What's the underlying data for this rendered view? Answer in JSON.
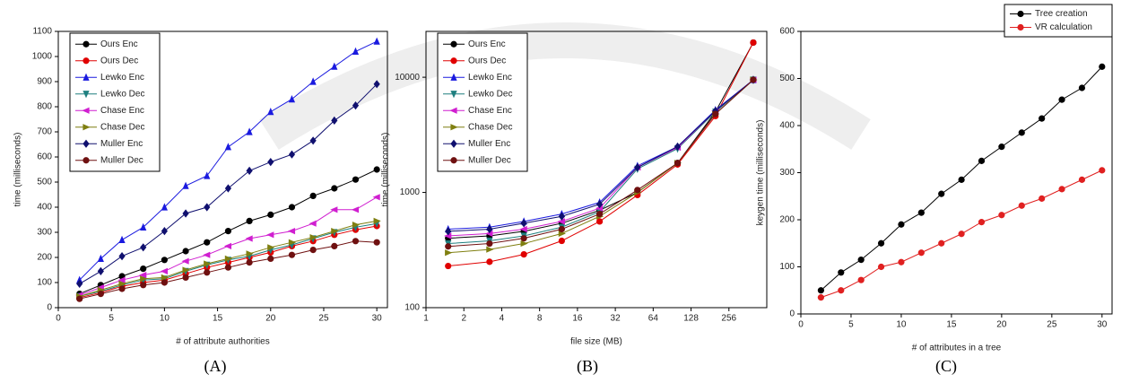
{
  "chart_data": [
    {
      "type": "line",
      "caption": "(A)",
      "x_label": "# of attribute authorities",
      "y_label": "time (milliseconds)",
      "x": [
        2,
        4,
        6,
        8,
        10,
        12,
        14,
        16,
        18,
        20,
        22,
        24,
        26,
        28,
        30
      ],
      "xlim": [
        0,
        31
      ],
      "xticks": [
        0,
        5,
        10,
        15,
        20,
        25,
        30
      ],
      "ylim": [
        0,
        1100
      ],
      "yticks": [
        0,
        100,
        200,
        300,
        400,
        500,
        600,
        700,
        800,
        900,
        1000,
        1100
      ],
      "legend": "upper left",
      "series": [
        {
          "name": "Ours Enc",
          "color": "#000000",
          "marker": "circle",
          "values": [
            55,
            90,
            125,
            155,
            190,
            225,
            260,
            305,
            345,
            370,
            400,
            445,
            475,
            510,
            550
          ]
        },
        {
          "name": "Ours Dec",
          "color": "#e00000",
          "marker": "circle",
          "values": [
            40,
            60,
            85,
            100,
            110,
            135,
            160,
            180,
            200,
            220,
            245,
            265,
            290,
            310,
            325
          ]
        },
        {
          "name": "Lewko Enc",
          "color": "#1a1adf",
          "marker": "triangle-up",
          "values": [
            110,
            195,
            270,
            320,
            400,
            485,
            525,
            640,
            700,
            780,
            830,
            900,
            960,
            1020,
            1060
          ]
        },
        {
          "name": "Lewko Dec",
          "color": "#1e7f7f",
          "marker": "triangle-down",
          "values": [
            45,
            65,
            90,
            110,
            115,
            145,
            170,
            190,
            205,
            230,
            250,
            275,
            300,
            320,
            335
          ]
        },
        {
          "name": "Chase Enc",
          "color": "#d01fd0",
          "marker": "triangle-left",
          "values": [
            50,
            80,
            110,
            130,
            145,
            185,
            210,
            245,
            275,
            290,
            305,
            335,
            390,
            390,
            440
          ]
        },
        {
          "name": "Chase Dec",
          "color": "#7f7f10",
          "marker": "triangle-right",
          "values": [
            45,
            70,
            95,
            115,
            120,
            150,
            175,
            195,
            215,
            240,
            260,
            280,
            305,
            330,
            345
          ]
        },
        {
          "name": "Muller Enc",
          "color": "#10106f",
          "marker": "diamond",
          "values": [
            95,
            145,
            205,
            240,
            305,
            375,
            400,
            475,
            545,
            580,
            610,
            665,
            745,
            805,
            890
          ]
        },
        {
          "name": "Muller Dec",
          "color": "#6f1010",
          "marker": "circle",
          "values": [
            35,
            55,
            75,
            90,
            100,
            120,
            140,
            160,
            180,
            195,
            210,
            230,
            245,
            265,
            260
          ]
        }
      ]
    },
    {
      "type": "line",
      "caption": "(B)",
      "x_label": "file size (MB)",
      "y_label": "time (milliseconds)",
      "x": [
        1.5,
        3.2,
        6,
        12,
        24,
        48,
        100,
        200,
        400
      ],
      "xlim": [
        1,
        512
      ],
      "xticks": [
        1,
        2,
        4,
        8,
        16,
        32,
        64,
        128,
        256
      ],
      "xlog": true,
      "ylim": [
        100,
        25000
      ],
      "yticks": [
        100,
        1000,
        10000
      ],
      "ylog": true,
      "legend": "upper left",
      "series": [
        {
          "name": "Ours Enc",
          "color": "#000000",
          "marker": "circle",
          "values": [
            400,
            420,
            460,
            540,
            700,
            1000,
            1800,
            5000,
            20000
          ]
        },
        {
          "name": "Ours Dec",
          "color": "#e00000",
          "marker": "circle",
          "values": [
            230,
            250,
            290,
            380,
            560,
            950,
            1750,
            4600,
            20000
          ]
        },
        {
          "name": "Lewko Enc",
          "color": "#1a1adf",
          "marker": "triangle-up",
          "values": [
            480,
            500,
            560,
            650,
            820,
            1700,
            2500,
            5200,
            9500
          ]
        },
        {
          "name": "Lewko Dec",
          "color": "#1e7f7f",
          "marker": "triangle-down",
          "values": [
            360,
            380,
            420,
            500,
            680,
            1600,
            2400,
            5000,
            9500
          ]
        },
        {
          "name": "Chase Enc",
          "color": "#d01fd0",
          "marker": "triangle-left",
          "values": [
            420,
            440,
            480,
            560,
            730,
            1650,
            2450,
            5100,
            9500
          ]
        },
        {
          "name": "Chase Dec",
          "color": "#7f7f10",
          "marker": "triangle-right",
          "values": [
            300,
            320,
            360,
            440,
            620,
            1000,
            1800,
            4800,
            9500
          ]
        },
        {
          "name": "Muller Enc",
          "color": "#10106f",
          "marker": "diamond",
          "values": [
            460,
            480,
            540,
            620,
            790,
            1650,
            2500,
            5100,
            9500
          ]
        },
        {
          "name": "Muller Dec",
          "color": "#6f1010",
          "marker": "circle",
          "values": [
            340,
            360,
            400,
            480,
            650,
            1050,
            1800,
            4800,
            9500
          ]
        }
      ]
    },
    {
      "type": "line",
      "caption": "(C)",
      "x_label": "# of attributes in a tree",
      "y_label": "keygen time (milliseconds)",
      "x": [
        2,
        4,
        6,
        8,
        10,
        12,
        14,
        16,
        18,
        20,
        22,
        24,
        26,
        28,
        30
      ],
      "xlim": [
        0,
        31
      ],
      "xticks": [
        0,
        5,
        10,
        15,
        20,
        25,
        30
      ],
      "ylim": [
        0,
        600
      ],
      "yticks": [
        0,
        100,
        200,
        300,
        400,
        500,
        600
      ],
      "legend": "upper right",
      "series": [
        {
          "name": "Tree creation",
          "color": "#000000",
          "marker": "circle",
          "values": [
            50,
            88,
            115,
            150,
            190,
            215,
            255,
            285,
            325,
            355,
            385,
            415,
            455,
            480,
            525
          ]
        },
        {
          "name": "VR calculation",
          "color": "#e02020",
          "marker": "circle",
          "values": [
            35,
            50,
            72,
            100,
            110,
            130,
            150,
            170,
            195,
            210,
            230,
            245,
            265,
            285,
            305
          ]
        }
      ]
    }
  ]
}
